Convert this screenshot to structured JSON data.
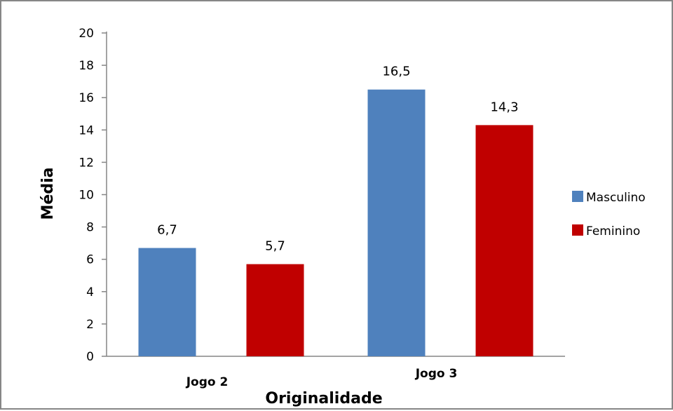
{
  "chart_data": {
    "type": "bar",
    "categories": [
      "Jogo 2",
      "Jogo 3"
    ],
    "series": [
      {
        "name": "Masculino",
        "values": [
          6.7,
          16.5
        ],
        "color": "#4F81BD"
      },
      {
        "name": "Feminino",
        "values": [
          5.7,
          14.3
        ],
        "color": "#C00000"
      }
    ],
    "data_labels": [
      [
        "6,7",
        "16,5"
      ],
      [
        "5,7",
        "14,3"
      ]
    ],
    "yticks": [
      0,
      2,
      4,
      6,
      8,
      10,
      12,
      14,
      16,
      18,
      20
    ],
    "ylim": [
      0,
      20
    ],
    "xlabel": "Originalidade",
    "ylabel": "Média",
    "title": "",
    "grid": false,
    "legend_position": "right"
  }
}
